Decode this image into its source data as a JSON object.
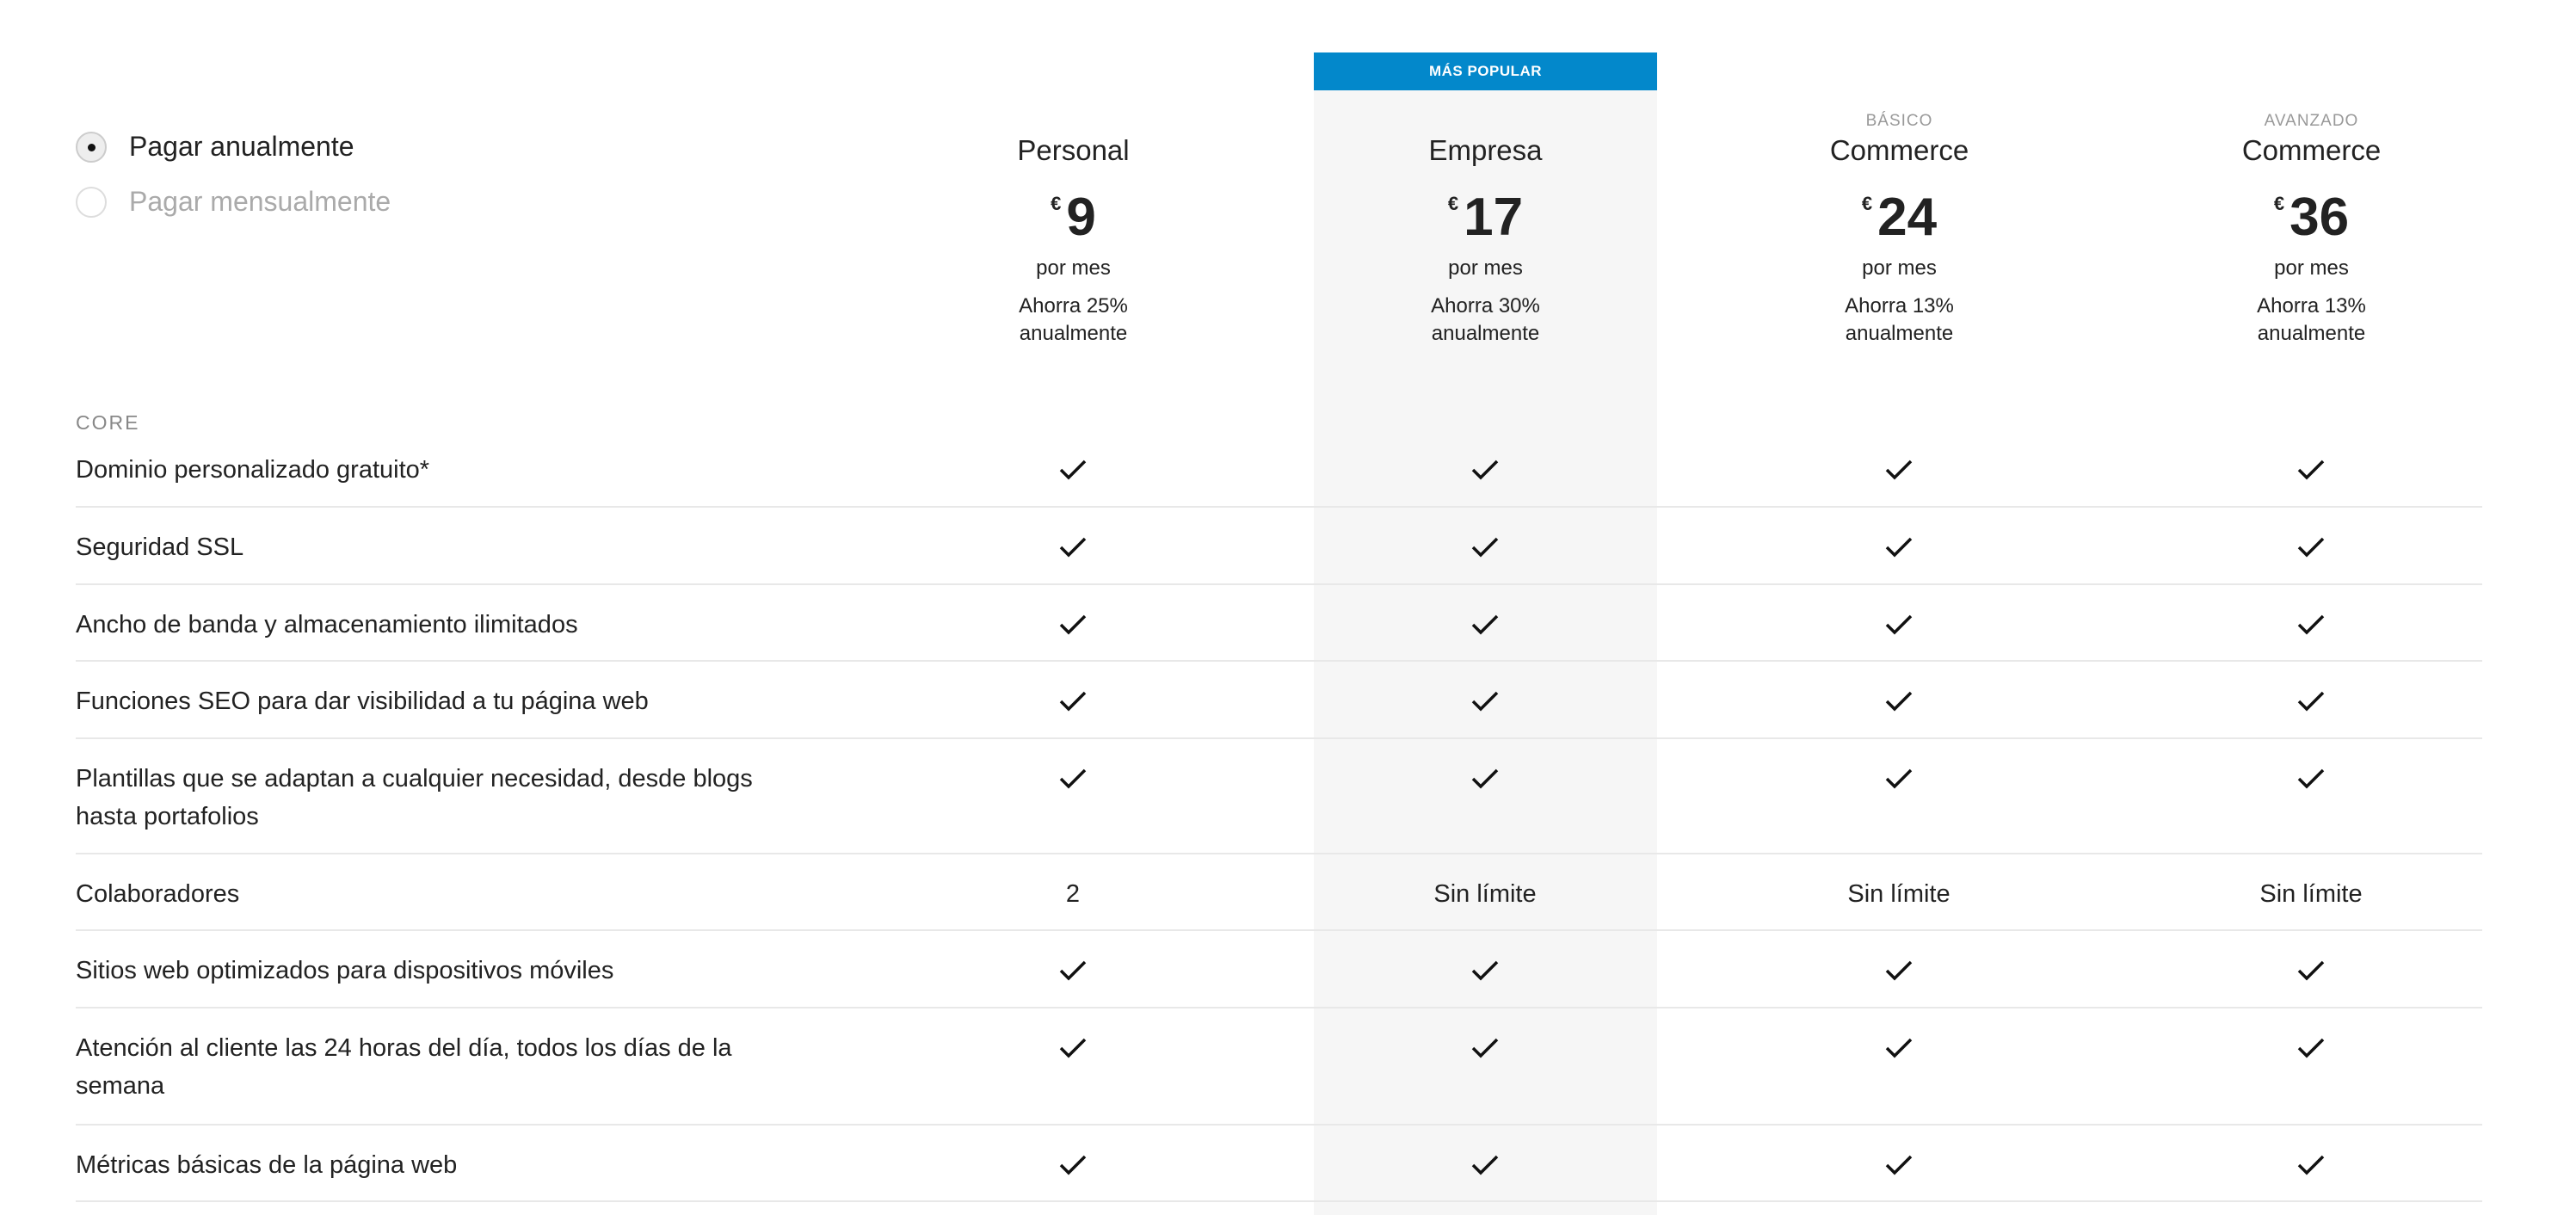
{
  "billing": {
    "annual": "Pagar anualmente",
    "monthly": "Pagar mensualmente",
    "selected": "annual"
  },
  "badge": "MÁS POPULAR",
  "accent": "#0388cb",
  "plans": [
    {
      "tier": "",
      "name": "Personal",
      "currency": "€",
      "price": "9",
      "period": "por mes",
      "save1": "Ahorra 25%",
      "save2": "anualmente"
    },
    {
      "tier": "",
      "name": "Empresa",
      "currency": "€",
      "price": "17",
      "period": "por mes",
      "save1": "Ahorra 30%",
      "save2": "anualmente"
    },
    {
      "tier": "BÁSICO",
      "name": "Commerce",
      "currency": "€",
      "price": "24",
      "period": "por mes",
      "save1": "Ahorra 13%",
      "save2": "anualmente"
    },
    {
      "tier": "AVANZADO",
      "name": "Commerce",
      "currency": "€",
      "price": "36",
      "period": "por mes",
      "save1": "Ahorra 13%",
      "save2": "anualmente"
    }
  ],
  "section": "CORE",
  "features": [
    {
      "label": "Dominio personalizado gratuito*",
      "values": [
        "check",
        "check",
        "check",
        "check"
      ]
    },
    {
      "label": "Seguridad SSL",
      "values": [
        "check",
        "check",
        "check",
        "check"
      ]
    },
    {
      "label": "Ancho de banda y almacenamiento ilimitados",
      "values": [
        "check",
        "check",
        "check",
        "check"
      ]
    },
    {
      "label": "Funciones SEO para dar visibilidad a tu página web",
      "values": [
        "check",
        "check",
        "check",
        "check"
      ]
    },
    {
      "label": "Plantillas que se adaptan a cualquier necesidad, desde blogs hasta portafolios",
      "values": [
        "check",
        "check",
        "check",
        "check"
      ]
    },
    {
      "label": "Colaboradores",
      "values": [
        "2",
        "Sin límite",
        "Sin límite",
        "Sin límite"
      ]
    },
    {
      "label": "Sitios web optimizados para dispositivos móviles",
      "values": [
        "check",
        "check",
        "check",
        "check"
      ]
    },
    {
      "label": "Atención al cliente las 24 horas del día, todos los días de la semana",
      "values": [
        "check",
        "check",
        "check",
        "check"
      ]
    },
    {
      "label": "Métricas básicas de la página web",
      "values": [
        "check",
        "check",
        "check",
        "check"
      ]
    }
  ]
}
